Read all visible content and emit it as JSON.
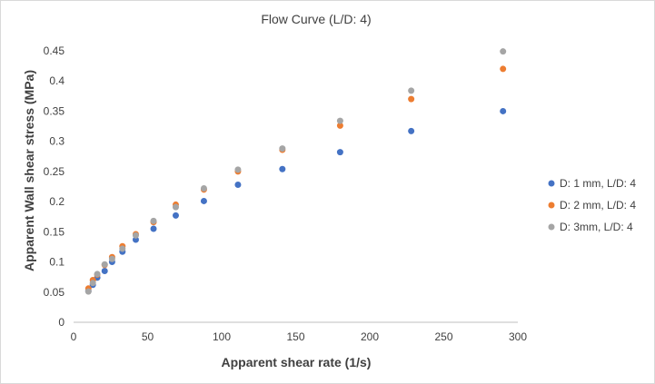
{
  "chart_data": {
    "type": "scatter",
    "title": "Flow Curve (L/D: 4)",
    "xlabel": "Apparent shear rate (1/s)",
    "ylabel": "Apparent Wall shear stress (MPa)",
    "xlim": [
      0,
      300
    ],
    "ylim": [
      0,
      0.45
    ],
    "xticks": [
      0,
      50,
      100,
      150,
      200,
      250,
      300
    ],
    "yticks": [
      0,
      0.05,
      0.1,
      0.15,
      0.2,
      0.25,
      0.3,
      0.35,
      0.4,
      0.45
    ],
    "xtick_labels": [
      "0",
      "50",
      "100",
      "150",
      "200",
      "250",
      "300"
    ],
    "ytick_labels": [
      "0",
      "0.05",
      "0.1",
      "0.15",
      "0.2",
      "0.25",
      "0.3",
      "0.35",
      "0.4",
      "0.45"
    ],
    "grid": false,
    "legend_position": "right",
    "series": [
      {
        "name": "D: 1 mm, L/D: 4",
        "color": "#4472C4",
        "x": [
          10,
          13,
          16,
          21,
          26,
          33,
          42,
          54,
          69,
          88,
          111,
          141,
          180,
          228,
          290
        ],
        "y": [
          0.052,
          0.062,
          0.074,
          0.085,
          0.1,
          0.117,
          0.137,
          0.155,
          0.177,
          0.201,
          0.228,
          0.254,
          0.282,
          0.317,
          0.35
        ]
      },
      {
        "name": "D: 2 mm, L/D: 4",
        "color": "#ED7D31",
        "x": [
          10,
          13,
          16,
          21,
          26,
          33,
          42,
          54,
          69,
          88,
          111,
          141,
          180,
          228,
          290
        ],
        "y": [
          0.056,
          0.07,
          0.079,
          0.095,
          0.108,
          0.126,
          0.146,
          0.166,
          0.195,
          0.22,
          0.25,
          0.286,
          0.326,
          0.37,
          0.42
        ]
      },
      {
        "name": "D: 3mm, L/D: 4",
        "color": "#A5A5A5",
        "x": [
          10,
          13,
          16,
          21,
          26,
          33,
          42,
          54,
          69,
          88,
          111,
          141,
          180,
          228,
          290
        ],
        "y": [
          0.051,
          0.065,
          0.08,
          0.096,
          0.105,
          0.122,
          0.144,
          0.168,
          0.191,
          0.222,
          0.253,
          0.288,
          0.334,
          0.384,
          0.449
        ]
      }
    ]
  }
}
